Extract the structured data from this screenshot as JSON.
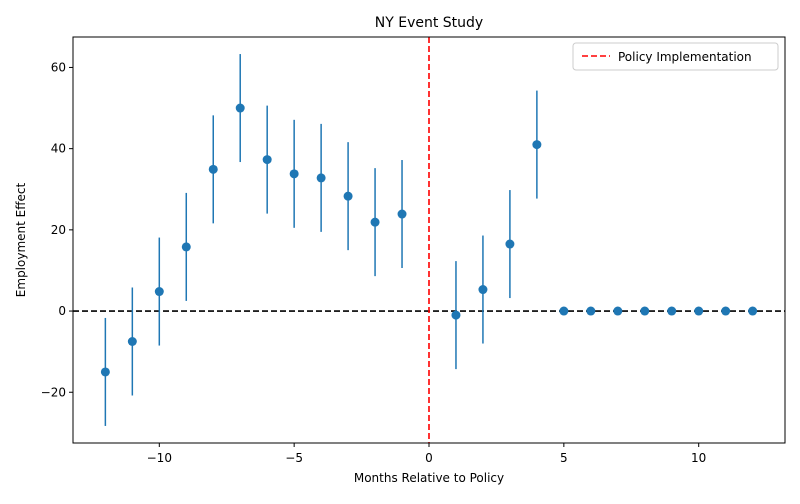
{
  "chart_data": {
    "type": "scatter",
    "title": "NY Event Study",
    "xlabel": "Months Relative to Policy",
    "ylabel": "Employment Effect",
    "xlim": [
      -13.2,
      13.2
    ],
    "ylim": [
      -32.5,
      67.5
    ],
    "xticks": [
      -10,
      -5,
      0,
      5,
      10
    ],
    "xtick_labels": [
      "−10",
      "−5",
      "0",
      "5",
      "10"
    ],
    "yticks": [
      -20,
      0,
      20,
      40,
      60
    ],
    "ytick_labels": [
      "−20",
      "0",
      "20",
      "40",
      "60"
    ],
    "grid": false,
    "legend_position": "top-right",
    "series": [
      {
        "marker_color": "#1f77b4",
        "error_bar_half_width": 13.3,
        "points": [
          {
            "x": -12,
            "y": -15.0
          },
          {
            "x": -11,
            "y": -7.5
          },
          {
            "x": -10,
            "y": 4.8
          },
          {
            "x": -9,
            "y": 15.8
          },
          {
            "x": -8,
            "y": 34.9
          },
          {
            "x": -7,
            "y": 50.0
          },
          {
            "x": -6,
            "y": 37.3
          },
          {
            "x": -5,
            "y": 33.8
          },
          {
            "x": -4,
            "y": 32.8
          },
          {
            "x": -3,
            "y": 28.3
          },
          {
            "x": -2,
            "y": 21.9
          },
          {
            "x": -1,
            "y": 23.9
          },
          {
            "x": 1,
            "y": -1.0
          },
          {
            "x": 2,
            "y": 5.3
          },
          {
            "x": 3,
            "y": 16.5
          },
          {
            "x": 4,
            "y": 41.0
          },
          {
            "x": 5,
            "y": 0
          },
          {
            "x": 6,
            "y": 0
          },
          {
            "x": 7,
            "y": 0
          },
          {
            "x": 8,
            "y": 0
          },
          {
            "x": 9,
            "y": 0
          },
          {
            "x": 10,
            "y": 0
          },
          {
            "x": 11,
            "y": 0
          },
          {
            "x": 12,
            "y": 0
          }
        ],
        "zero_error_from_x": 5
      }
    ],
    "reference_lines": [
      {
        "orientation": "horizontal",
        "value": 0,
        "color": "#000000",
        "style": "dashed"
      },
      {
        "orientation": "vertical",
        "value": 0,
        "color": "#ff0000",
        "style": "dashed",
        "label": "Policy Implementation"
      }
    ]
  }
}
